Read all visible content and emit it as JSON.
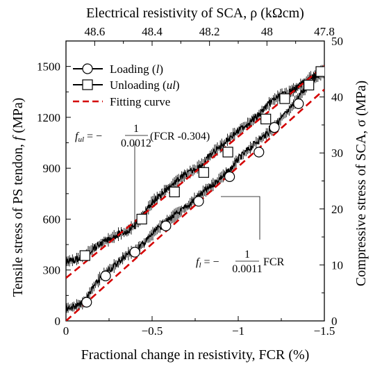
{
  "chart_data": {
    "type": "line",
    "title": "",
    "xlabel": "Fractional change in resistivity, FCR (%)",
    "ylabel": "Tensile stress of PS tendon, f (MPa)",
    "ylabel_prefix": "Tensile stress of PS tendon, ",
    "ylabel_italic": "f",
    "ylabel_suffix": " (MPa)",
    "x2label": "Electrical resistivity of SCA, ρ (kΩcm)",
    "y2label": "Compressive stress of SCA, σ (MPa)",
    "xlim": [
      0,
      -1.5
    ],
    "ylim": [
      0,
      1650
    ],
    "x2lim": [
      48.7,
      47.8
    ],
    "y2lim": [
      0,
      50
    ],
    "x_ticks": [
      0,
      -0.5,
      -1,
      -1.5
    ],
    "x_tick_labels": [
      "0",
      "−0.5",
      "−1",
      "−1.5"
    ],
    "y_ticks": [
      0,
      300,
      600,
      900,
      1200,
      1500
    ],
    "y_tick_labels": [
      "0",
      "300",
      "600",
      "900",
      "1200",
      "1500"
    ],
    "x2_ticks": [
      48.6,
      48.4,
      48.2,
      48.0,
      47.8
    ],
    "x2_tick_labels": [
      "48.6",
      "48.4",
      "48.2",
      "48",
      "47.8"
    ],
    "y2_ticks": [
      0,
      10,
      20,
      30,
      40,
      50
    ],
    "y2_tick_labels": [
      "0",
      "10",
      "20",
      "30",
      "40",
      "50"
    ],
    "legend_placement": "top-left",
    "series": [
      {
        "name": "Loading (l)",
        "name_prefix": "Loading (",
        "name_italic": "l",
        "name_suffix": ")",
        "marker": "circle",
        "x": [
          0,
          -0.05,
          -0.1,
          -0.15,
          -0.2,
          -0.25,
          -0.3,
          -0.35,
          -0.4,
          -0.45,
          -0.5,
          -0.55,
          -0.6,
          -0.65,
          -0.7,
          -0.75,
          -0.8,
          -0.85,
          -0.9,
          -0.95,
          -1.0,
          -1.05,
          -1.1,
          -1.15,
          -1.2,
          -1.25,
          -1.3,
          -1.35,
          -1.4,
          -1.45,
          -1.5
        ],
        "y": [
          75,
          85,
          105,
          185,
          255,
          300,
          340,
          390,
          415,
          455,
          510,
          560,
          600,
          635,
          670,
          720,
          760,
          800,
          845,
          885,
          955,
          1000,
          1050,
          1090,
          1135,
          1195,
          1245,
          1320,
          1385,
          1440,
          1470
        ],
        "marker_x": [
          -0.12,
          -0.23,
          -0.4,
          -0.58,
          -0.77,
          -0.95,
          -1.12,
          -1.21,
          -1.35
        ],
        "marker_y": [
          110,
          265,
          405,
          560,
          705,
          850,
          995,
          1140,
          1280
        ]
      },
      {
        "name": "Unloading (ul)",
        "name_prefix": "Unloading (",
        "name_italic": "ul",
        "name_suffix": ")",
        "marker": "square",
        "x": [
          0,
          -0.05,
          -0.1,
          -0.15,
          -0.2,
          -0.25,
          -0.3,
          -0.35,
          -0.4,
          -0.45,
          -0.5,
          -0.55,
          -0.6,
          -0.65,
          -0.7,
          -0.75,
          -0.8,
          -0.85,
          -0.9,
          -0.95,
          -1.0,
          -1.05,
          -1.1,
          -1.15,
          -1.2,
          -1.25,
          -1.3,
          -1.35,
          -1.4,
          -1.45,
          -1.5
        ],
        "y": [
          350,
          360,
          380,
          420,
          455,
          480,
          510,
          525,
          565,
          620,
          700,
          745,
          790,
          830,
          865,
          895,
          930,
          990,
          1030,
          1080,
          1120,
          1160,
          1195,
          1250,
          1300,
          1330,
          1350,
          1380,
          1420,
          1450,
          1490
        ],
        "marker_x": [
          -0.11,
          -0.44,
          -0.63,
          -0.8,
          -0.94,
          -1.16,
          -1.27,
          -1.41,
          -1.48
        ],
        "marker_y": [
          385,
          600,
          760,
          875,
          995,
          1190,
          1310,
          1390,
          1470
        ]
      },
      {
        "name": "Fitting curve",
        "style": "dashed",
        "color": "#d40000",
        "x": [
          0,
          -1.5
        ],
        "y": [
          253,
          1503
        ]
      },
      {
        "name": "",
        "style": "dashed",
        "color": "#d40000",
        "x": [
          0,
          -1.5
        ],
        "y": [
          0,
          1364
        ]
      }
    ],
    "annotations": [
      {
        "lhs_italic": "f",
        "lhs_sub": "ul",
        "rhs_prefix": " = −",
        "frac_num": "1",
        "frac_den": "0.0012",
        "rhs_suffix": " (FCR -0.304)"
      },
      {
        "lhs_italic": "f",
        "lhs_sub": "l",
        "rhs_prefix": " = −",
        "frac_num": "1",
        "frac_den": "0.0011",
        "rhs_suffix": " FCR"
      }
    ],
    "colors": {
      "axis": "#000000",
      "data": "#000000",
      "fit": "#d40000"
    }
  }
}
